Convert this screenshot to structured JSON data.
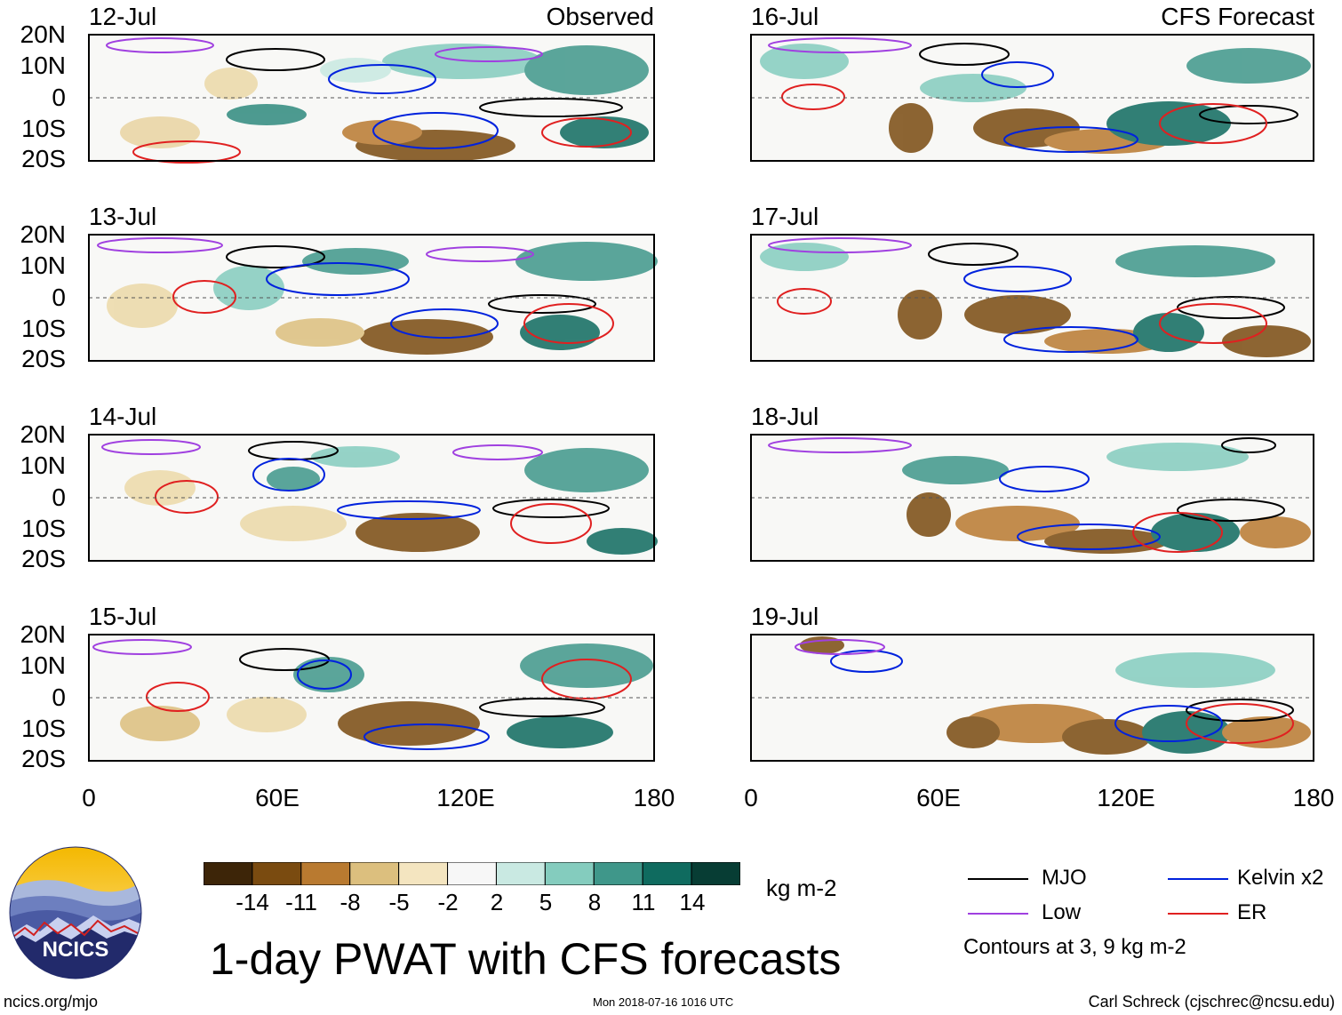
{
  "title": "1-day PWAT with CFS forecasts",
  "left_column_header": "Observed",
  "right_column_header": "CFS Forecast",
  "lat_labels": [
    "20N",
    "10N",
    "0",
    "10S",
    "20S"
  ],
  "lon_labels": [
    "0",
    "60E",
    "120E",
    "180"
  ],
  "panels": [
    {
      "date": "12-Jul",
      "column": "left"
    },
    {
      "date": "13-Jul",
      "column": "left"
    },
    {
      "date": "14-Jul",
      "column": "left"
    },
    {
      "date": "15-Jul",
      "column": "left"
    },
    {
      "date": "16-Jul",
      "column": "right"
    },
    {
      "date": "17-Jul",
      "column": "right"
    },
    {
      "date": "18-Jul",
      "column": "right"
    },
    {
      "date": "19-Jul",
      "column": "right"
    }
  ],
  "colorbar": {
    "units": "kg m-2",
    "ticks": [
      "-14",
      "-11",
      "-8",
      "-5",
      "-2",
      "2",
      "5",
      "8",
      "11",
      "14"
    ],
    "colors": [
      "#3d2508",
      "#7a4b10",
      "#b97a30",
      "#dcbf7e",
      "#f4e5c0",
      "#f7f7f7",
      "#c9e9e2",
      "#84ccbe",
      "#3f978a",
      "#0f6b5f",
      "#073d34"
    ]
  },
  "legend": {
    "items": [
      {
        "label": "MJO",
        "color": "#000000"
      },
      {
        "label": "Kelvin x2",
        "color": "#0022dd"
      },
      {
        "label": "Low",
        "color": "#a040e0"
      },
      {
        "label": "ER",
        "color": "#e02020"
      }
    ],
    "note": "Contours at 3, 9 kg m-2"
  },
  "logo": {
    "text": "NCICS"
  },
  "footer": {
    "left": "ncics.org/mjo",
    "center": "Mon 2018-07-16 1016 UTC",
    "right": "Carl Schreck (cjschrec@ncsu.edu)"
  }
}
